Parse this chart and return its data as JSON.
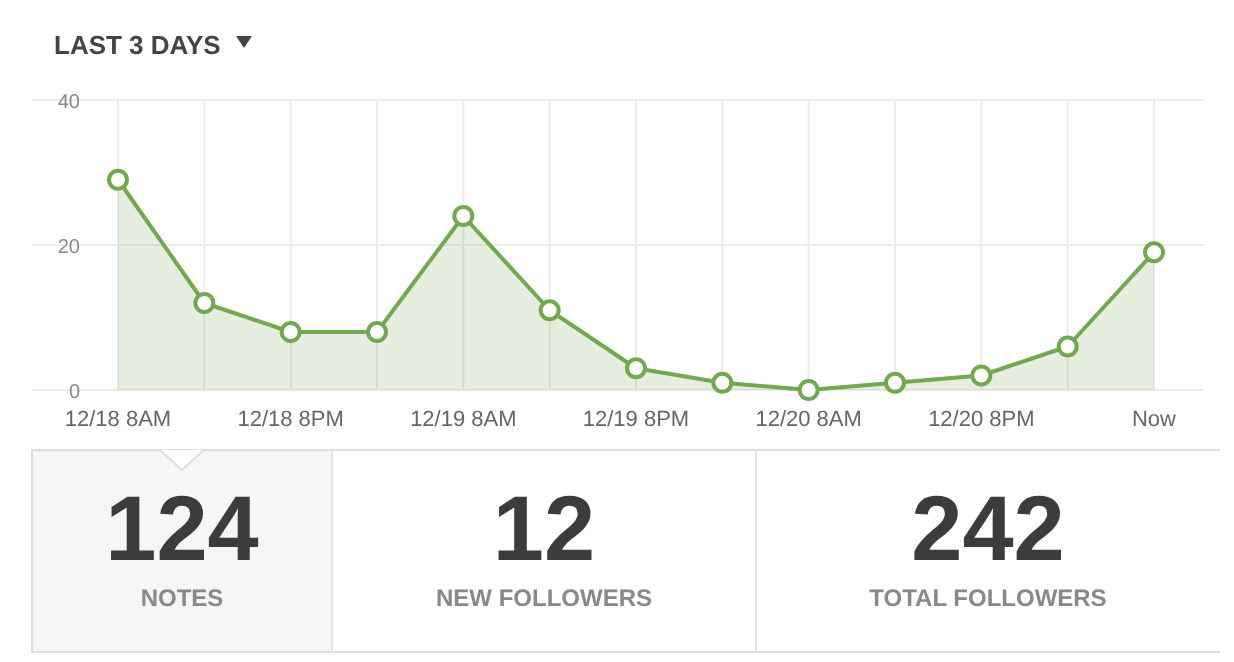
{
  "chart_data": [
    {
      "type": "area",
      "title": "LAST 3 DAYS",
      "categories": [
        "12/18 8AM",
        null,
        "12/18 8PM",
        null,
        "12/19 8AM",
        null,
        "12/19 8PM",
        null,
        "12/20 8AM",
        null,
        "12/20 8PM",
        null,
        "Now"
      ],
      "series": [
        {
          "color": "#72a94f",
          "values": [
            29,
            12,
            8,
            8,
            24,
            11,
            3,
            1,
            0,
            1,
            2,
            6,
            19
          ]
        }
      ],
      "ylim": [
        0,
        40
      ],
      "yticks": [
        0,
        20,
        40
      ],
      "grid": true,
      "marker": "circle"
    },
    {
      "type": "other",
      "categories": [
        "NOTES",
        "NEW FOLLOWERS",
        "TOTAL FOLLOWERS"
      ],
      "values": [
        124,
        12,
        242
      ],
      "data_labels": true
    }
  ]
}
